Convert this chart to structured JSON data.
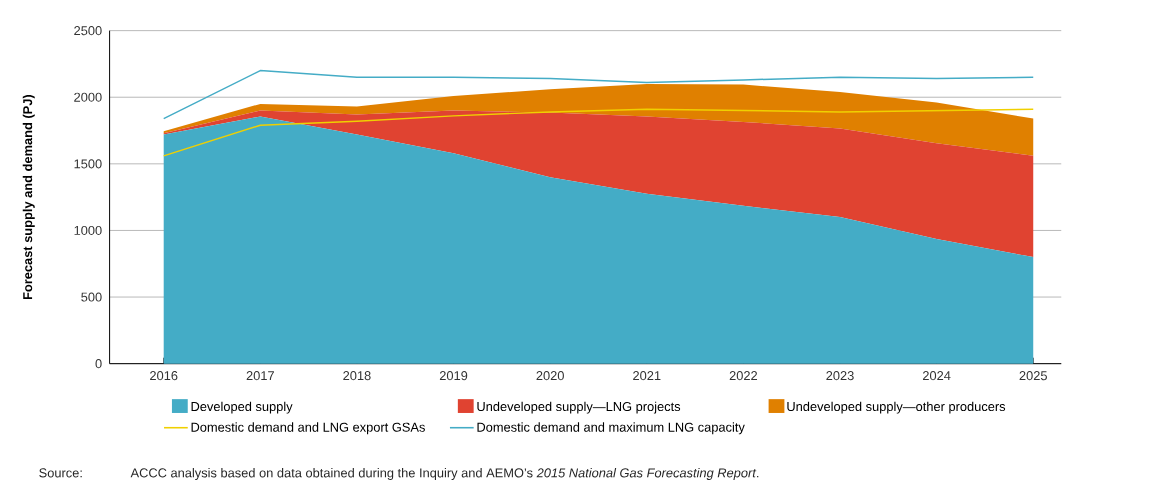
{
  "chart_data": {
    "type": "area",
    "ylabel": "Forecast supply and demand (PJ)",
    "categories": [
      "2016",
      "2017",
      "2018",
      "2019",
      "2020",
      "2021",
      "2022",
      "2023",
      "2024",
      "2025"
    ],
    "stacked": true,
    "series": [
      {
        "name": "Developed supply",
        "color": "#44acc6",
        "values": [
          1720,
          1855,
          1720,
          1580,
          1400,
          1275,
          1185,
          1100,
          935,
          800
        ]
      },
      {
        "name": "Undeveloped supply—LNG projects",
        "color": "#e04331",
        "values": [
          10,
          45,
          150,
          320,
          485,
          580,
          630,
          665,
          720,
          760
        ]
      },
      {
        "name": "Undeveloped supply—other producers",
        "color": "#e08000",
        "values": [
          15,
          50,
          60,
          110,
          175,
          245,
          280,
          275,
          305,
          280
        ]
      },
      {
        "name": "Domestic demand and LNG export GSAs",
        "type": "line",
        "color": "#f0d000",
        "values": [
          1560,
          1790,
          1820,
          1860,
          1890,
          1910,
          1900,
          1890,
          1900,
          1910
        ]
      },
      {
        "name": "Domestic demand and maximum LNG capacity",
        "type": "line",
        "color": "#44acc6",
        "values": [
          1840,
          2200,
          2150,
          2150,
          2140,
          2110,
          2130,
          2150,
          2140,
          2150
        ]
      }
    ],
    "ylim": [
      0,
      2500
    ],
    "yticks": [
      0,
      500,
      1000,
      1500,
      2000,
      2500
    ],
    "grid": "y",
    "legend": "bottom",
    "annotations": [
      "Source:",
      "ACCC analysis based on data obtained during the Inquiry and AEMO’s *2015 National Gas Forecasting Report*."
    ]
  }
}
